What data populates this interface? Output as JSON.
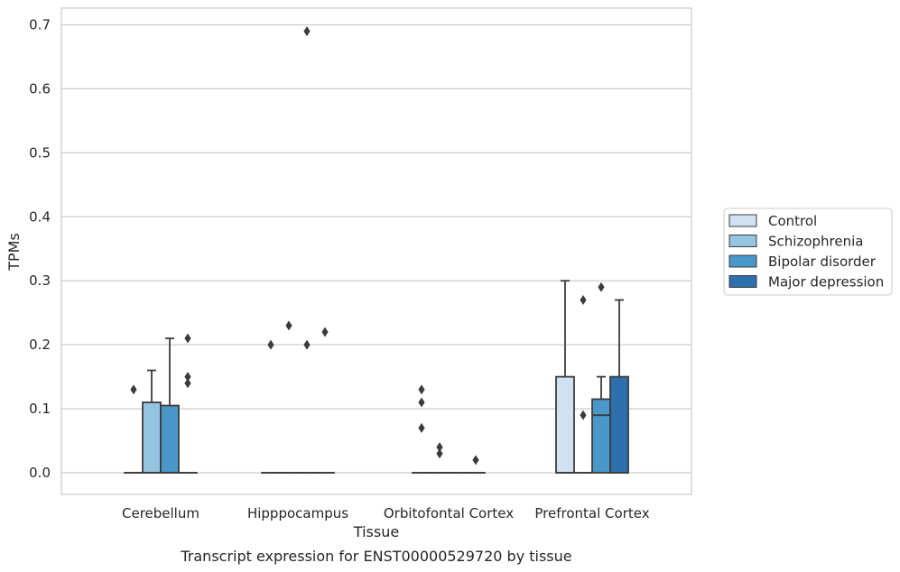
{
  "chart_data": {
    "type": "box",
    "caption": "Transcript expression for ENST00000529720 by tissue",
    "xlabel": "Tissue",
    "ylabel": "TPMs",
    "ylim": [
      -0.035,
      0.727
    ],
    "yticks": [
      0.0,
      0.1,
      0.2,
      0.3,
      0.4,
      0.5,
      0.6,
      0.7
    ],
    "ytick_labels": [
      "0.0",
      "0.1",
      "0.2",
      "0.3",
      "0.4",
      "0.5",
      "0.6",
      "0.7"
    ],
    "grid": "horizontal",
    "legend_position": "right",
    "categories": [
      "Cerebellum",
      "Hipppocampus",
      "Orbitofontal Cortex",
      "Prefrontal Cortex"
    ],
    "series": [
      {
        "name": "Control",
        "color": "#d0e1f2",
        "boxes": [
          {
            "q1": 0,
            "median": 0,
            "q3": 0,
            "whisker_low": 0,
            "whisker_high": 0,
            "outliers": [
              0.13
            ]
          },
          {
            "q1": 0,
            "median": 0,
            "q3": 0,
            "whisker_low": 0,
            "whisker_high": 0,
            "outliers": [
              0.2
            ]
          },
          {
            "q1": 0,
            "median": 0,
            "q3": 0,
            "whisker_low": 0,
            "whisker_high": 0,
            "outliers": [
              0.13,
              0.11,
              0.07
            ]
          },
          {
            "q1": 0,
            "median": 0,
            "q3": 0.15,
            "whisker_low": 0,
            "whisker_high": 0.3,
            "outliers": []
          }
        ]
      },
      {
        "name": "Schizophrenia",
        "color": "#94c4df",
        "boxes": [
          {
            "q1": 0,
            "median": 0,
            "q3": 0.11,
            "whisker_low": 0,
            "whisker_high": 0.16,
            "outliers": []
          },
          {
            "q1": 0,
            "median": 0,
            "q3": 0,
            "whisker_low": 0,
            "whisker_high": 0,
            "outliers": [
              0.23
            ]
          },
          {
            "q1": 0,
            "median": 0,
            "q3": 0,
            "whisker_low": 0,
            "whisker_high": 0,
            "outliers": [
              0.04,
              0.03
            ]
          },
          {
            "q1": 0,
            "median": 0,
            "q3": 0,
            "whisker_low": 0,
            "whisker_high": 0,
            "outliers": [
              0.09,
              0.27
            ]
          }
        ]
      },
      {
        "name": "Bipolar disorder",
        "color": "#4a98c9",
        "boxes": [
          {
            "q1": 0,
            "median": 0,
            "q3": 0.105,
            "whisker_low": 0,
            "whisker_high": 0.21,
            "outliers": []
          },
          {
            "q1": 0,
            "median": 0,
            "q3": 0,
            "whisker_low": 0,
            "whisker_high": 0,
            "outliers": [
              0.69,
              0.2
            ]
          },
          {
            "q1": 0,
            "median": 0,
            "q3": 0,
            "whisker_low": 0,
            "whisker_high": 0,
            "outliers": []
          },
          {
            "q1": 0,
            "median": 0.09,
            "q3": 0.115,
            "whisker_low": 0,
            "whisker_high": 0.15,
            "outliers": [
              0.29
            ]
          }
        ]
      },
      {
        "name": "Major depression",
        "color": "#2e6fae",
        "boxes": [
          {
            "q1": 0,
            "median": 0,
            "q3": 0,
            "whisker_low": 0,
            "whisker_high": 0,
            "outliers": [
              0.21,
              0.15,
              0.14
            ]
          },
          {
            "q1": 0,
            "median": 0,
            "q3": 0,
            "whisker_low": 0,
            "whisker_high": 0,
            "outliers": [
              0.22
            ]
          },
          {
            "q1": 0,
            "median": 0,
            "q3": 0,
            "whisker_low": 0,
            "whisker_high": 0,
            "outliers": [
              0.02
            ]
          },
          {
            "q1": 0,
            "median": 0,
            "q3": 0.15,
            "whisker_low": 0,
            "whisker_high": 0.27,
            "outliers": []
          }
        ]
      }
    ]
  }
}
